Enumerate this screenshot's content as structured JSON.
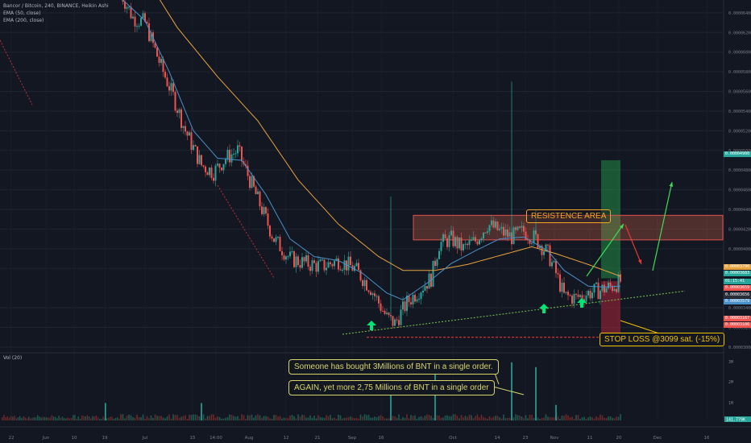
{
  "header": {
    "title": "Bancor / Bitcoin, 240, BINANCE, Heikin Ashi",
    "ema50": "EMA (50, close)",
    "ema200": "EMA (200, close)",
    "volume": "Vol (20)"
  },
  "annotations": {
    "resistance": "RESISTENCE AREA",
    "stop_loss": "STOP LOSS @3099 sat. (-15%)",
    "note1": "Someone has bought 3Millions of BNT in a single order.",
    "note2": "AGAIN, yet more 2,75 Millions of BNT in a single order"
  },
  "colors": {
    "background": "#131722",
    "up": "#26a69a",
    "down": "#ef5350",
    "ema50": "#4a90c8",
    "ema200": "#e8a33d",
    "resistance_zone": "#e8a33d",
    "arrow_green": "#00e676",
    "stop_line": "#ff3b3b",
    "trendline": "#7ec850"
  },
  "price_tags": [
    {
      "label": "0.00004900",
      "color": "#26a69a"
    },
    {
      "label": "0.00003700",
      "color": "#e8a33d"
    },
    {
      "label": "0.00003683",
      "color": "#26a69a"
    },
    {
      "label": "01:15:41",
      "color": "#26a69a"
    },
    {
      "label": "0.00003659",
      "color": "#ef5350"
    },
    {
      "label": "0.00003656",
      "color": "#2a2e39"
    },
    {
      "label": "0.00003579",
      "color": "#4a90c8"
    },
    {
      "label": "0.00003167",
      "color": "#ef5350"
    },
    {
      "label": "0.00003106",
      "color": "#ef5350"
    }
  ],
  "chart_data": {
    "type": "candlestick",
    "title": "Bancor / Bitcoin, 240, BINANCE, Heikin Ashi",
    "x_ticks": [
      "22",
      "Jun",
      "10",
      "19",
      "Jul",
      "15",
      "14:00",
      "Aug",
      "12",
      "21",
      "Sep",
      "16",
      "Oct",
      "14",
      "23",
      "Nov",
      "11",
      "20",
      "Dec",
      "16"
    ],
    "y_ticks": [
      "0.00006400",
      "0.00006200",
      "0.00006000",
      "0.00005800",
      "0.00005600",
      "0.00005400",
      "0.00005200",
      "0.00005000",
      "0.00004800",
      "0.00004600",
      "0.00004400",
      "0.00004200",
      "0.00004000",
      "0.00003800",
      "0.00003400",
      "0.00003200",
      "0.00003000"
    ],
    "volume_ticks": [
      "3M",
      "2M",
      "1M"
    ],
    "volume_last": "141.779K",
    "ylim": [
      2.95e-05,
      6.53e-05
    ],
    "price_path": [
      [
        0,
        6.6e-05
      ],
      [
        3,
        6.35e-05
      ],
      [
        6,
        6.3e-05
      ],
      [
        10,
        5.85e-05
      ],
      [
        13,
        5.55e-05
      ],
      [
        16,
        5.2e-05
      ],
      [
        20,
        4.85e-05
      ],
      [
        23,
        4.78e-05
      ],
      [
        26,
        4.92e-05
      ],
      [
        29,
        5e-05
      ],
      [
        32,
        4.7e-05
      ],
      [
        35,
        4.4e-05
      ],
      [
        38,
        4.1e-05
      ],
      [
        42,
        3.9e-05
      ],
      [
        46,
        3.85e-05
      ],
      [
        50,
        3.82e-05
      ],
      [
        54,
        3.88e-05
      ],
      [
        58,
        3.8e-05
      ],
      [
        62,
        3.6e-05
      ],
      [
        66,
        3.3e-05
      ],
      [
        68,
        3.24e-05
      ],
      [
        71,
        3.45e-05
      ],
      [
        74,
        3.58e-05
      ],
      [
        77,
        3.7e-05
      ],
      [
        79,
        4.05e-05
      ],
      [
        82,
        4.1e-05
      ],
      [
        85,
        4e-05
      ],
      [
        88,
        4.08e-05
      ],
      [
        91,
        4.25e-05
      ],
      [
        94,
        4.18e-05
      ],
      [
        97,
        4.12e-05
      ],
      [
        100,
        4.18e-05
      ],
      [
        103,
        4.1e-05
      ],
      [
        106,
        3.95e-05
      ],
      [
        108,
        3.75e-05
      ],
      [
        110,
        3.52e-05
      ],
      [
        113,
        3.5e-05
      ],
      [
        116,
        3.55e-05
      ],
      [
        119,
        3.58e-05
      ],
      [
        122,
        3.62e-05
      ],
      [
        124,
        3.67e-05
      ]
    ],
    "ema50_path": [
      [
        0,
        6.55e-05
      ],
      [
        6,
        6.32e-05
      ],
      [
        12,
        5.8e-05
      ],
      [
        18,
        5.2e-05
      ],
      [
        24,
        4.92e-05
      ],
      [
        30,
        4.9e-05
      ],
      [
        36,
        4.55e-05
      ],
      [
        42,
        4.1e-05
      ],
      [
        48,
        3.92e-05
      ],
      [
        54,
        3.88e-05
      ],
      [
        60,
        3.75e-05
      ],
      [
        66,
        3.55e-05
      ],
      [
        70,
        3.48e-05
      ],
      [
        76,
        3.65e-05
      ],
      [
        82,
        3.85e-05
      ],
      [
        88,
        3.98e-05
      ],
      [
        94,
        4.1e-05
      ],
      [
        100,
        4.12e-05
      ],
      [
        106,
        3.98e-05
      ],
      [
        110,
        3.78e-05
      ],
      [
        116,
        3.62e-05
      ],
      [
        120,
        3.61e-05
      ],
      [
        124,
        3.62e-05
      ]
    ],
    "ema200_path": [
      [
        4,
        6.9e-05
      ],
      [
        14,
        6.25e-05
      ],
      [
        24,
        5.75e-05
      ],
      [
        34,
        5.3e-05
      ],
      [
        44,
        4.7e-05
      ],
      [
        54,
        4.25e-05
      ],
      [
        64,
        3.92e-05
      ],
      [
        70,
        3.78e-05
      ],
      [
        78,
        3.78e-05
      ],
      [
        86,
        3.84e-05
      ],
      [
        94,
        3.93e-05
      ],
      [
        102,
        4.02e-05
      ],
      [
        108,
        3.95e-05
      ],
      [
        116,
        3.84e-05
      ],
      [
        124,
        3.72e-05
      ]
    ],
    "resistance_zone": [
      4.09e-05,
      4.34e-05
    ],
    "stop_loss": 3.1e-05,
    "target_zone": [
      3.7e-05,
      4.9e-05
    ],
    "risk_zone": [
      3.1e-05,
      3.67e-05
    ],
    "trendline": [
      [
        55,
        3.13e-05
      ],
      [
        140,
        3.57e-05
      ]
    ],
    "volume_spikes": [
      [
        20,
        0.9
      ],
      [
        67,
        2.0
      ],
      [
        78,
        2.5
      ],
      [
        97,
        3.0
      ],
      [
        103,
        2.75
      ],
      [
        108,
        0.8
      ]
    ]
  }
}
